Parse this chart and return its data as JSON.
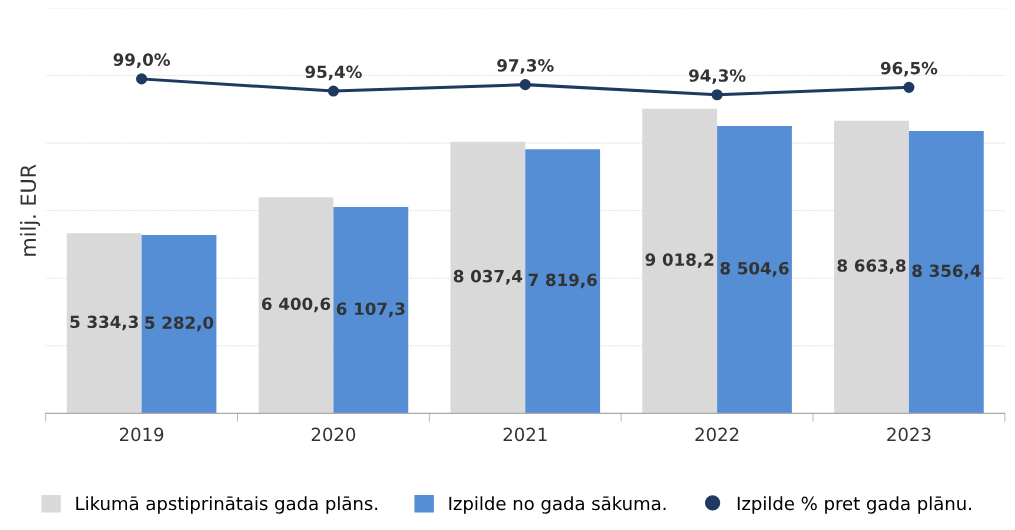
{
  "chart_data": {
    "type": "bar",
    "ylabel": "milj. EUR",
    "categories": [
      "2019",
      "2020",
      "2021",
      "2022",
      "2023"
    ],
    "series": [
      {
        "name": "Likumā apstiprinātais gada plāns.",
        "color": "#d9d9d9",
        "values": [
          5334.3,
          6400.6,
          8037.4,
          9018.2,
          8663.8
        ],
        "value_labels": [
          "5 334,3",
          "6 400,6",
          "8 037,4",
          "9 018,2",
          "8 663,8"
        ]
      },
      {
        "name": "Izpilde no gada sākuma.",
        "color": "#558ed5",
        "values": [
          5282.0,
          6107.3,
          7819.6,
          8504.6,
          8356.4
        ],
        "value_labels": [
          "5 282,0",
          "6 107,3",
          "7 819,6",
          "8 504,6",
          "8 356,4"
        ]
      },
      {
        "name": "Izpilde % pret gada plānu.",
        "type": "line",
        "axis": "y2",
        "color": "#1f3a60",
        "values": [
          99.0,
          95.4,
          97.3,
          94.3,
          96.5
        ],
        "value_labels": [
          "99,0%",
          "95,4%",
          "97,3%",
          "94,3%",
          "96,5%"
        ]
      }
    ],
    "ylim": [
      0,
      12000
    ],
    "yticks": [
      {
        "value": 0,
        "label": null
      },
      {
        "value": 2000,
        "label": null
      },
      {
        "value": 4000,
        "label": null
      },
      {
        "value": 6000,
        "label": null
      },
      {
        "value": 8000,
        "label": null
      },
      {
        "value": 10000,
        "label": null
      },
      {
        "value": 12000,
        "label": null
      }
    ],
    "y2lim": [
      0,
      120
    ],
    "tick_labels": "x",
    "grid": "y",
    "legend": "bottom",
    "marker": "circle",
    "line_style": "solid"
  }
}
